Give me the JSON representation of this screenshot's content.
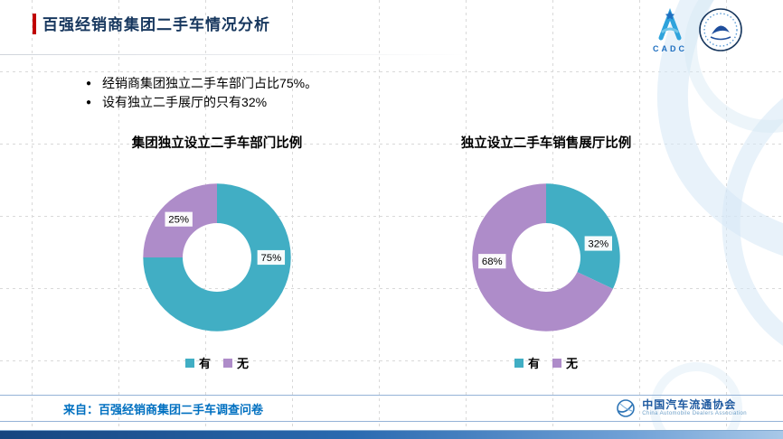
{
  "header": {
    "title": "百强经销商集团二手车情况分析"
  },
  "logos": {
    "cadc_text": "CADC",
    "assoc_name": "中国汽车流通协会",
    "assoc_sub": "China Automobile Dealers Association"
  },
  "icons": {
    "bullet": "●"
  },
  "bullets": [
    "经销商集团独立二手车部门占比75%。",
    "设有独立二手展厅的只有32%"
  ],
  "footer": {
    "source": "来自：百强经销商集团二手车调查问卷"
  },
  "colors": {
    "title": "#17375E",
    "accent_red": "#C00000",
    "teal": "#41AEC4",
    "purple": "#AE8CC9",
    "footer_text": "#0070C0",
    "footer_line": "#95B3D7"
  },
  "chart_data": [
    {
      "type": "pie",
      "subtype": "donut",
      "title": "集团独立设立二手车部门比例",
      "labels": [
        "有",
        "无"
      ],
      "values": [
        75,
        25
      ],
      "value_labels": [
        "75%",
        "25%"
      ],
      "colors": [
        "#41AEC4",
        "#AE8CC9"
      ],
      "label_angles": [
        90,
        315
      ],
      "start_angle": 0,
      "legend_position": "bottom"
    },
    {
      "type": "pie",
      "subtype": "donut",
      "title": "独立设立二手车销售展厅比例",
      "labels": [
        "有",
        "无"
      ],
      "values": [
        32,
        68
      ],
      "value_labels": [
        "32%",
        "68%"
      ],
      "colors": [
        "#41AEC4",
        "#AE8CC9"
      ],
      "label_angles": [
        75,
        266
      ],
      "start_angle": 0,
      "legend_position": "bottom"
    }
  ]
}
